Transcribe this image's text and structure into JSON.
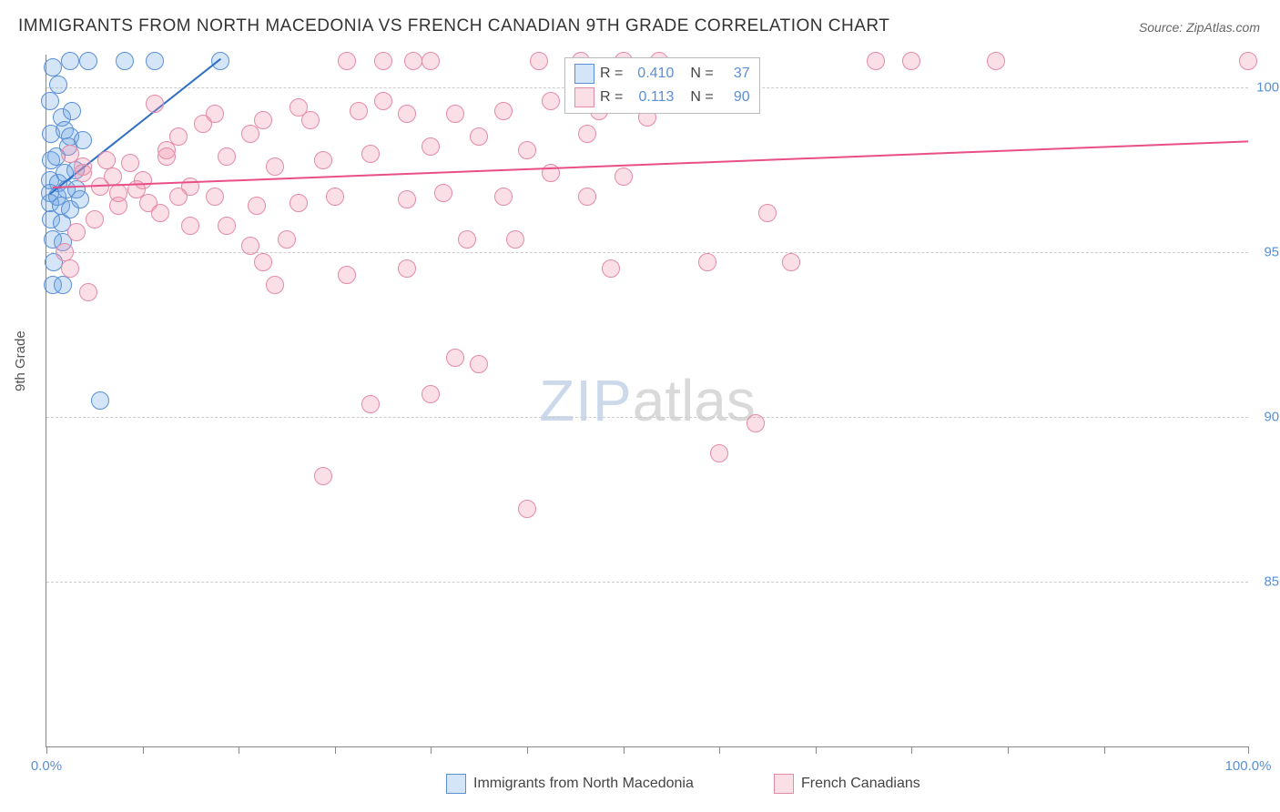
{
  "title": "IMMIGRANTS FROM NORTH MACEDONIA VS FRENCH CANADIAN 9TH GRADE CORRELATION CHART",
  "source_label": "Source: ZipAtlas.com",
  "ylabel": "9th Grade",
  "watermark_a": "ZIP",
  "watermark_b": "atlas",
  "chart": {
    "type": "scatter",
    "xlim": [
      0,
      100
    ],
    "ylim": [
      80,
      101
    ],
    "xtick_positions": [
      0,
      8,
      16,
      24,
      32,
      40,
      48,
      56,
      64,
      72,
      80,
      88,
      100
    ],
    "xtick_labels_shown": {
      "0": "0.0%",
      "100": "100.0%"
    },
    "ytick_positions": [
      85,
      90,
      95,
      100
    ],
    "ytick_labels": {
      "85": "85.0%",
      "90": "90.0%",
      "95": "95.0%",
      "100": "100.0%"
    },
    "grid_color": "#cccccc",
    "background_color": "#ffffff",
    "marker_radius": 9,
    "marker_border_width": 1
  },
  "series": [
    {
      "name": "Immigrants from North Macedonia",
      "fill_color": "rgba(100,160,225,0.28)",
      "stroke_color": "#5a8fd6",
      "line_color": "#2f6fc4",
      "R": "0.410",
      "N": "37",
      "trend": {
        "x1": 0.3,
        "y1": 96.8,
        "x2": 14.5,
        "y2": 100.9
      },
      "points": [
        [
          0.5,
          100.6
        ],
        [
          2,
          100.8
        ],
        [
          3.5,
          100.8
        ],
        [
          6.5,
          100.8
        ],
        [
          9,
          100.8
        ],
        [
          14.5,
          100.8
        ],
        [
          1,
          100.1
        ],
        [
          0.3,
          99.6
        ],
        [
          1.3,
          99.1
        ],
        [
          2.1,
          99.3
        ],
        [
          0.4,
          98.6
        ],
        [
          1.5,
          98.7
        ],
        [
          2,
          98.5
        ],
        [
          0.4,
          97.8
        ],
        [
          0.8,
          97.9
        ],
        [
          1.8,
          98.2
        ],
        [
          3,
          98.4
        ],
        [
          2.4,
          97.5
        ],
        [
          0.3,
          97.2
        ],
        [
          1,
          97.1
        ],
        [
          1.5,
          97.4
        ],
        [
          0.3,
          96.8
        ],
        [
          0.9,
          96.7
        ],
        [
          1.7,
          96.9
        ],
        [
          2.5,
          96.9
        ],
        [
          0.3,
          96.5
        ],
        [
          1.2,
          96.4
        ],
        [
          2,
          96.3
        ],
        [
          2.8,
          96.6
        ],
        [
          0.4,
          96.0
        ],
        [
          1.3,
          95.9
        ],
        [
          0.5,
          95.4
        ],
        [
          1.4,
          95.3
        ],
        [
          0.6,
          94.7
        ],
        [
          0.5,
          94.0
        ],
        [
          1.4,
          94.0
        ],
        [
          4.5,
          90.5
        ]
      ]
    },
    {
      "name": "French Canadians",
      "fill_color": "rgba(240,140,170,0.28)",
      "stroke_color": "#e48aa8",
      "line_color": "#e94f86",
      "R": "0.113",
      "N": "90",
      "trend": {
        "x1": 0.5,
        "y1": 97.0,
        "x2": 100,
        "y2": 98.4
      },
      "points": [
        [
          25,
          100.8
        ],
        [
          28,
          100.8
        ],
        [
          30.5,
          100.8
        ],
        [
          32,
          100.8
        ],
        [
          41,
          100.8
        ],
        [
          44.5,
          100.8
        ],
        [
          48,
          100.8
        ],
        [
          51,
          100.8
        ],
        [
          69,
          100.8
        ],
        [
          72,
          100.8
        ],
        [
          79,
          100.8
        ],
        [
          100,
          100.8
        ],
        [
          9,
          99.5
        ],
        [
          21,
          99.4
        ],
        [
          13,
          98.9
        ],
        [
          17,
          98.6
        ],
        [
          11,
          98.5
        ],
        [
          28,
          99.6
        ],
        [
          5,
          97.8
        ],
        [
          7,
          97.7
        ],
        [
          10,
          98.1
        ],
        [
          15,
          97.9
        ],
        [
          8,
          97.2
        ],
        [
          12,
          97.0
        ],
        [
          19,
          97.6
        ],
        [
          23,
          97.8
        ],
        [
          27,
          98.0
        ],
        [
          32,
          98.2
        ],
        [
          36,
          98.5
        ],
        [
          40,
          98.1
        ],
        [
          45,
          98.6
        ],
        [
          42,
          97.4
        ],
        [
          48,
          97.3
        ],
        [
          6,
          96.4
        ],
        [
          8.5,
          96.5
        ],
        [
          11,
          96.7
        ],
        [
          14,
          96.7
        ],
        [
          17.5,
          96.4
        ],
        [
          21,
          96.5
        ],
        [
          24,
          96.7
        ],
        [
          30,
          96.6
        ],
        [
          33,
          96.8
        ],
        [
          38,
          96.7
        ],
        [
          45,
          96.7
        ],
        [
          35,
          95.4
        ],
        [
          39,
          95.4
        ],
        [
          60,
          96.2
        ],
        [
          3,
          97.4
        ],
        [
          4.5,
          97.0
        ],
        [
          6,
          96.8
        ],
        [
          4,
          96.0
        ],
        [
          2.5,
          95.6
        ],
        [
          18,
          94.7
        ],
        [
          25,
          94.3
        ],
        [
          30,
          94.5
        ],
        [
          47,
          94.5
        ],
        [
          55,
          94.7
        ],
        [
          62,
          94.7
        ],
        [
          19,
          94.0
        ],
        [
          36,
          91.6
        ],
        [
          32,
          90.7
        ],
        [
          34,
          91.8
        ],
        [
          27,
          90.4
        ],
        [
          23,
          88.2
        ],
        [
          40,
          87.2
        ],
        [
          59,
          89.8
        ],
        [
          56,
          88.9
        ],
        [
          10,
          97.9
        ],
        [
          14,
          99.2
        ],
        [
          18,
          99.0
        ],
        [
          22,
          99.0
        ],
        [
          26,
          99.3
        ],
        [
          30,
          99.2
        ],
        [
          34,
          99.2
        ],
        [
          38,
          99.3
        ],
        [
          42,
          99.6
        ],
        [
          46,
          99.3
        ],
        [
          50,
          99.1
        ],
        [
          2,
          98.0
        ],
        [
          3,
          97.6
        ],
        [
          5.5,
          97.3
        ],
        [
          7.5,
          96.9
        ],
        [
          9.5,
          96.2
        ],
        [
          12,
          95.8
        ],
        [
          15,
          95.8
        ],
        [
          17,
          95.2
        ],
        [
          20,
          95.4
        ],
        [
          1.5,
          95.0
        ],
        [
          2,
          94.5
        ],
        [
          3.5,
          93.8
        ]
      ]
    }
  ],
  "legend": {
    "R_label": "R =",
    "N_label": "N ="
  },
  "bottom_legend": [
    {
      "label": "Immigrants from North Macedonia"
    },
    {
      "label": "French Canadians"
    }
  ]
}
